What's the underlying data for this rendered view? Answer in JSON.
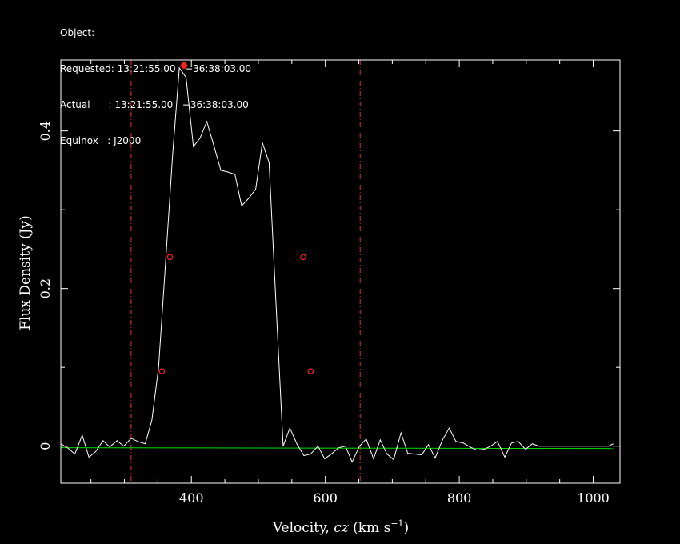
{
  "header": {
    "line1": "Object:",
    "line2": "Requested: 13:21:55.00   −36:38:03.00",
    "line3": "Actual      : 13:21:55.00   −36:38:03.00",
    "line4": "Equinox   : J2000"
  },
  "chart_data": {
    "type": "line",
    "title": "",
    "xlabel_prefix": "Velocity, ",
    "xlabel_italic": "cz",
    "xlabel_unit": " (km s",
    "xlabel_sup": "−1",
    "xlabel_close": ")",
    "ylabel": "Flux Density (Jy)",
    "xlim": [
      205,
      1040
    ],
    "ylim": [
      -0.047,
      0.49
    ],
    "x_ticks": [
      400,
      600,
      800,
      1000
    ],
    "x_tick_labels": [
      "400",
      "600",
      "800",
      "1000"
    ],
    "y_ticks": [
      0,
      0.2,
      0.4
    ],
    "y_tick_labels": [
      "0",
      "0.2",
      "0.4"
    ],
    "x_minor_step": 50,
    "y_minor_step": 0.1,
    "grid": false,
    "colors": {
      "spectrum": "#ffffff",
      "baseline": "#00e000",
      "markers": "#ff2020",
      "window": "#e03030",
      "axes": "#ffffff"
    },
    "baseline": {
      "x": [
        205,
        1030
      ],
      "y": [
        -0.002,
        -0.003
      ]
    },
    "window_lines": [
      310,
      652
    ],
    "peak_marker": {
      "x": 389,
      "y": 0.483
    },
    "open_markers": [
      {
        "x": 356,
        "y": 0.095
      },
      {
        "x": 368,
        "y": 0.24
      },
      {
        "x": 567,
        "y": 0.24
      },
      {
        "x": 578,
        "y": 0.095
      }
    ],
    "series": [
      {
        "x": [
          205,
          215,
          226,
          237,
          247,
          257,
          268,
          278,
          289,
          299,
          310,
          320,
          331,
          341,
          351,
          362,
          372,
          382,
          392,
          403,
          413,
          423,
          434,
          444,
          454,
          465,
          475,
          485,
          496,
          506,
          516,
          527,
          537,
          547,
          558,
          568,
          578,
          589,
          599,
          609,
          620,
          630,
          640,
          651,
          661,
          672,
          682,
          692,
          702,
          713,
          723,
          733,
          744,
          754,
          764,
          775,
          785,
          795,
          806,
          816,
          826,
          837,
          847,
          857,
          868,
          878,
          888,
          899,
          909,
          919,
          930,
          940,
          950,
          961,
          971,
          981,
          992,
          1002,
          1012,
          1023,
          1030
        ],
        "y": [
          0.003,
          -0.002,
          -0.01,
          0.014,
          -0.014,
          -0.007,
          0.007,
          -0.001,
          0.007,
          0.0,
          0.01,
          0.006,
          0.003,
          0.033,
          0.1,
          0.24,
          0.37,
          0.48,
          0.468,
          0.38,
          0.391,
          0.412,
          0.38,
          0.35,
          0.348,
          0.345,
          0.305,
          0.314,
          0.326,
          0.385,
          0.36,
          0.17,
          0.0,
          0.023,
          0.002,
          -0.012,
          -0.01,
          0.0,
          -0.016,
          -0.01,
          -0.002,
          0.0,
          -0.02,
          0.0,
          0.009,
          -0.016,
          0.008,
          -0.01,
          -0.017,
          0.017,
          -0.009,
          -0.01,
          -0.011,
          0.002,
          -0.015,
          0.008,
          0.023,
          0.006,
          0.004,
          -0.001,
          -0.005,
          -0.004,
          0.0,
          0.006,
          -0.014,
          0.004,
          0.006,
          -0.004,
          0.003,
          0.0,
          0.0,
          0.0,
          0.0,
          0.0,
          0.0,
          0.0,
          0.0,
          0.0,
          0.0,
          0.0,
          0.003
        ]
      }
    ]
  }
}
